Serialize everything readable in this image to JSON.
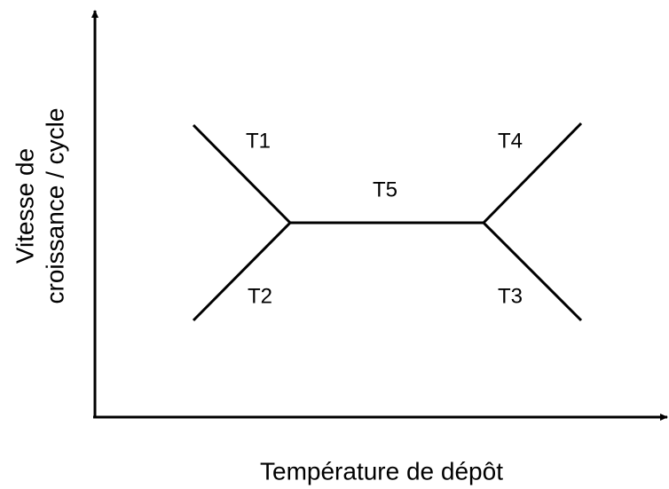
{
  "axes": {
    "x_label": "Température de dépôt",
    "y_label": [
      "Vitesse de",
      "croissance / cycle"
    ]
  },
  "regions": [
    "T1",
    "T2",
    "T3",
    "T4",
    "T5"
  ]
}
